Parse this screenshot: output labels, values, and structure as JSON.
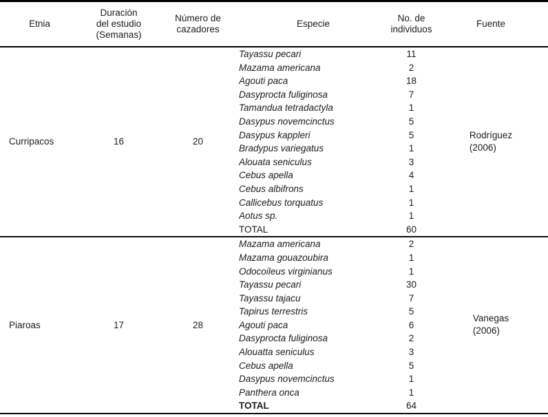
{
  "table": {
    "columns": [
      {
        "label": "Etnia"
      },
      {
        "label": "Duración\ndel estudio\n(Semanas)"
      },
      {
        "label": "Número de\ncazadores"
      },
      {
        "label": "Especie"
      },
      {
        "label": "No. de\nindividuos"
      },
      {
        "label": "Fuente"
      }
    ],
    "groups": [
      {
        "etnia": "Curripacos",
        "duracion_semanas": "16",
        "num_cazadores": "20",
        "fuente": "Rodríguez\n(2006)",
        "rows": [
          {
            "especie": "Tayassu pecari",
            "individuos": "11",
            "style": "species"
          },
          {
            "especie": "Mazama americana",
            "individuos": "2",
            "style": "species"
          },
          {
            "especie": "Agouti paca",
            "individuos": "18",
            "style": "species"
          },
          {
            "especie": "Dasyprocta fuliginosa",
            "individuos": "7",
            "style": "species"
          },
          {
            "especie": "Tamandua tetradactyla",
            "individuos": "1",
            "style": "species"
          },
          {
            "especie": "Dasypus novemcinctus",
            "individuos": "5",
            "style": "species"
          },
          {
            "especie": "Dasypus kappleri",
            "individuos": "5",
            "style": "species"
          },
          {
            "especie": "Bradypus variegatus",
            "individuos": "1",
            "style": "species"
          },
          {
            "especie": "Alouata seniculus",
            "individuos": "3",
            "style": "species"
          },
          {
            "especie": "Cebus apella",
            "individuos": "4",
            "style": "species"
          },
          {
            "especie": "Cebus albifrons",
            "individuos": "1",
            "style": "species"
          },
          {
            "especie": "Callicebus torquatus",
            "individuos": "1",
            "style": "species"
          },
          {
            "especie": "Aotus sp.",
            "individuos": "1",
            "style": "species"
          },
          {
            "especie": "TOTAL",
            "individuos": "60",
            "style": "total-regular"
          }
        ]
      },
      {
        "etnia": "Piaroas",
        "duracion_semanas": "17",
        "num_cazadores": "28",
        "fuente": "Vanegas\n(2006)",
        "rows": [
          {
            "especie": "Mazama americana",
            "individuos": "2",
            "style": "species"
          },
          {
            "especie": "Mazama gouazoubira",
            "individuos": "1",
            "style": "species"
          },
          {
            "especie": "Odocoileus virginianus",
            "individuos": "1",
            "style": "species"
          },
          {
            "especie": "Tayassu pecari",
            "individuos": "30",
            "style": "species"
          },
          {
            "especie": "Tayassu tajacu",
            "individuos": "7",
            "style": "species"
          },
          {
            "especie": "Tapirus terrestris",
            "individuos": "5",
            "style": "species"
          },
          {
            "especie": "Agouti paca",
            "individuos": "6",
            "style": "species"
          },
          {
            "especie": "Dasyprocta fuliginosa",
            "individuos": "2",
            "style": "species"
          },
          {
            "especie": "Alouatta seniculus",
            "individuos": "3",
            "style": "species"
          },
          {
            "especie": "Cebus apella",
            "individuos": "5",
            "style": "species"
          },
          {
            "especie": "Dasypus novemcinctus",
            "individuos": "1",
            "style": "species"
          },
          {
            "especie": "Panthera onca",
            "individuos": "1",
            "style": "species"
          },
          {
            "especie": "TOTAL",
            "individuos": "64",
            "style": "total-bold"
          }
        ]
      }
    ]
  },
  "colors": {
    "text": "#1b1b1b",
    "rule": "#000000",
    "background": "#ffffff"
  }
}
